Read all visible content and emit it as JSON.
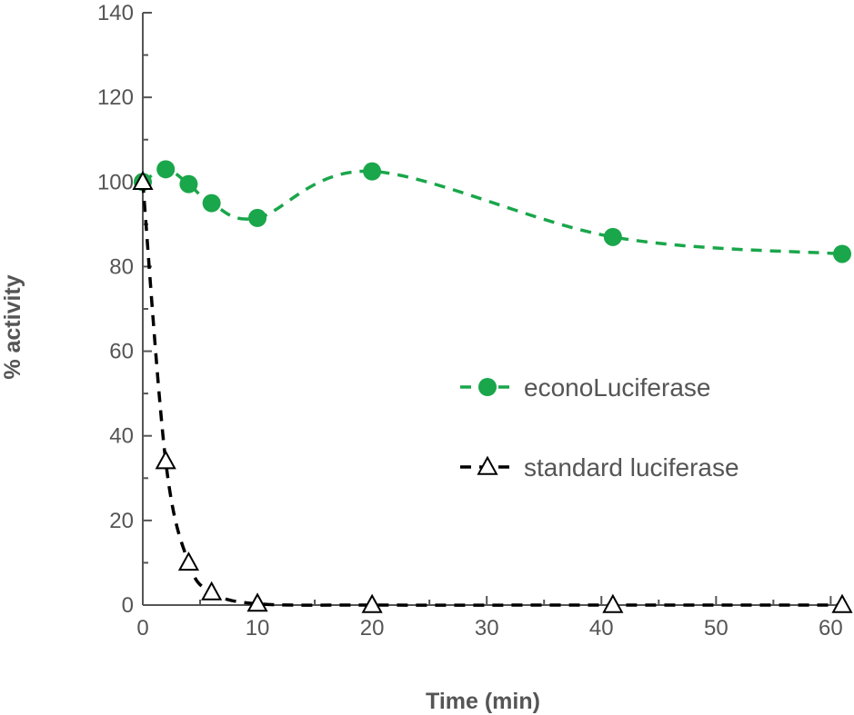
{
  "chart_data": {
    "type": "line",
    "title": "",
    "xlabel": "Time (min)",
    "ylabel": "% activity",
    "xlim": [
      0,
      61
    ],
    "ylim": [
      0,
      140
    ],
    "x_ticks": [
      0,
      10,
      20,
      30,
      40,
      50,
      60
    ],
    "y_ticks": [
      0,
      20,
      40,
      60,
      80,
      100,
      120,
      140
    ],
    "grid": false,
    "legend_position": "center-right",
    "series": [
      {
        "name": "econoLuciferase",
        "marker": "filled-circle",
        "line_style": "dashed",
        "color": "#1aa64b",
        "x": [
          0,
          2,
          4,
          6,
          10,
          20,
          41,
          61
        ],
        "y": [
          100,
          103,
          99.5,
          95,
          91.5,
          102.5,
          87,
          83
        ]
      },
      {
        "name": "standard luciferase",
        "marker": "open-triangle",
        "line_style": "dashed",
        "color": "#000000",
        "x": [
          0,
          2,
          4,
          6,
          10,
          20,
          41,
          61
        ],
        "y": [
          100,
          34,
          10,
          3,
          0.3,
          0,
          0,
          0
        ]
      }
    ]
  }
}
